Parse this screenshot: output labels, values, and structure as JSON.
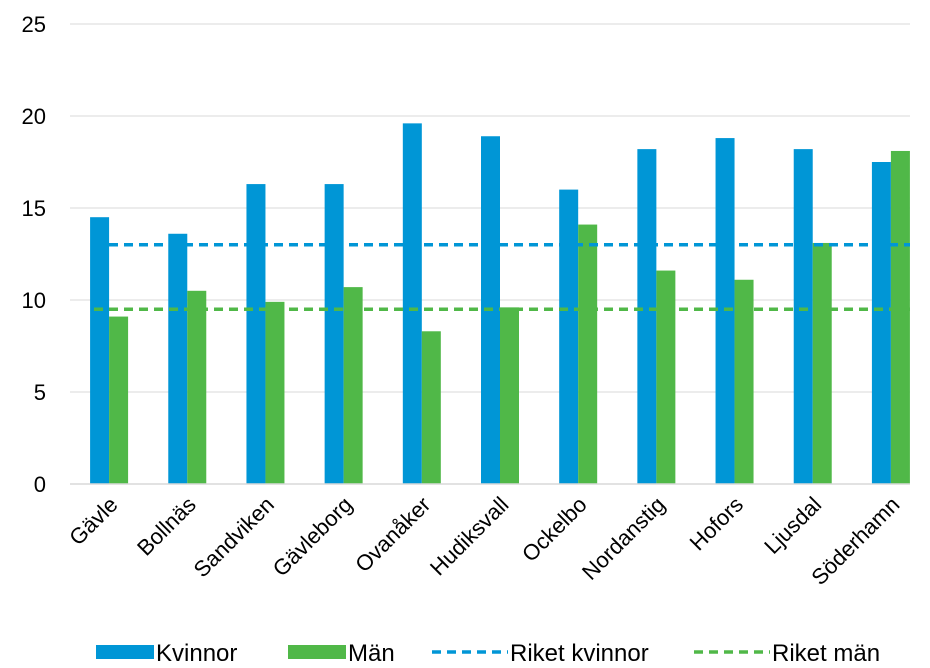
{
  "chart_data": {
    "type": "bar",
    "categories": [
      "Gävle",
      "Bollnäs",
      "Sandviken",
      "Gävleborg",
      "Ovanåker",
      "Hudiksvall",
      "Ockelbo",
      "Nordanstig",
      "Hofors",
      "Ljusdal",
      "Söderhamn"
    ],
    "series": [
      {
        "name": "Kvinnor",
        "color": "#0096D6",
        "values": [
          14.5,
          13.6,
          16.3,
          16.3,
          19.6,
          18.9,
          16.0,
          18.2,
          18.8,
          18.2,
          17.5
        ]
      },
      {
        "name": "Män",
        "color": "#50B848",
        "values": [
          9.1,
          10.5,
          9.9,
          10.7,
          8.3,
          9.6,
          14.1,
          11.6,
          11.1,
          13.1,
          18.1
        ]
      }
    ],
    "reference_lines": [
      {
        "name": "Riket kvinnor",
        "value": 13.0,
        "color": "#0096D6",
        "style": "dashed"
      },
      {
        "name": "Riket män",
        "value": 9.5,
        "color": "#50B848",
        "style": "dashed"
      }
    ],
    "y_ticks": [
      0,
      5,
      10,
      15,
      20,
      25
    ],
    "ylim": [
      0,
      25
    ],
    "grid": true,
    "legend": "bottom",
    "title": "",
    "xlabel": "",
    "ylabel": ""
  }
}
